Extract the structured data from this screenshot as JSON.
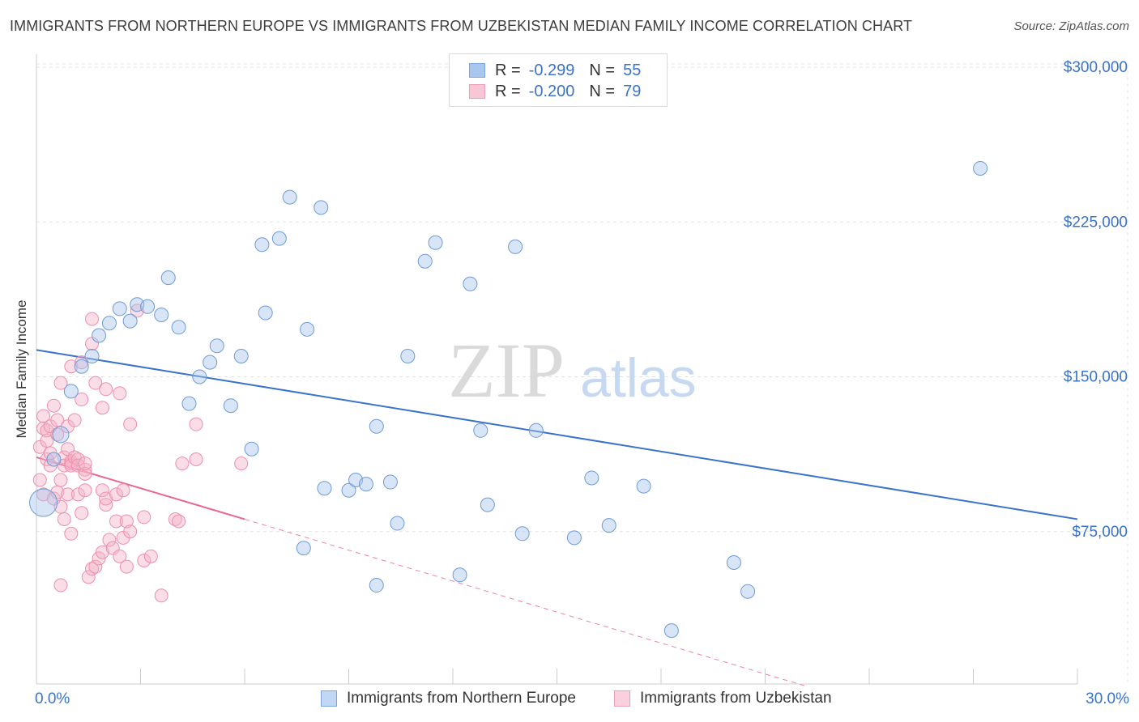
{
  "title": "IMMIGRANTS FROM NORTHERN EUROPE VS IMMIGRANTS FROM UZBEKISTAN MEDIAN FAMILY INCOME CORRELATION CHART",
  "source": "Source: ZipAtlas.com",
  "watermark": {
    "zip": "ZIP",
    "atlas": "atlas"
  },
  "legend": {
    "blue": {
      "r_label": "R =",
      "r_value": "-0.299",
      "n_label": "N =",
      "n_value": "55"
    },
    "pink": {
      "r_label": "R =",
      "r_value": "-0.200",
      "n_label": "N =",
      "n_value": "79"
    }
  },
  "colors": {
    "blue": "#3a73c9",
    "blue_fill": "#a9c6ee",
    "pink": "#e8668f",
    "pink_fill": "#f5b3c8",
    "grid": "#e3e3e3",
    "tick_label": "#3a73c9"
  },
  "chart_data": {
    "type": "scatter",
    "title": "IMMIGRANTS FROM NORTHERN EUROPE VS IMMIGRANTS FROM UZBEKISTAN MEDIAN FAMILY INCOME CORRELATION CHART",
    "xlabel": "",
    "ylabel": "Median Family Income",
    "xlim": [
      0,
      30
    ],
    "ylim": [
      0,
      310000
    ],
    "x_tick_labels": [
      "0.0%",
      "30.0%"
    ],
    "y_ticks": [
      75000,
      150000,
      225000,
      300000
    ],
    "y_tick_labels": [
      "$75,000",
      "$150,000",
      "$225,000",
      "$300,000"
    ],
    "grid": true,
    "legend_position": "top-center",
    "series": [
      {
        "name": "Immigrants from Northern Europe",
        "color": "#3a73c9",
        "r": -0.299,
        "n": 55,
        "trend": {
          "x": [
            0,
            30
          ],
          "y": [
            163000,
            81000
          ]
        },
        "points": [
          [
            0.2,
            89000
          ],
          [
            0.5,
            110000
          ],
          [
            0.7,
            122000
          ],
          [
            1.0,
            143000
          ],
          [
            1.3,
            155000
          ],
          [
            1.6,
            160000
          ],
          [
            1.8,
            170000
          ],
          [
            2.1,
            176000
          ],
          [
            2.4,
            183000
          ],
          [
            2.7,
            177000
          ],
          [
            2.9,
            185000
          ],
          [
            3.2,
            184000
          ],
          [
            3.6,
            180000
          ],
          [
            3.8,
            198000
          ],
          [
            4.1,
            174000
          ],
          [
            4.4,
            137000
          ],
          [
            4.7,
            150000
          ],
          [
            5.0,
            157000
          ],
          [
            5.2,
            165000
          ],
          [
            5.6,
            136000
          ],
          [
            5.9,
            160000
          ],
          [
            6.2,
            115000
          ],
          [
            6.5,
            214000
          ],
          [
            6.6,
            181000
          ],
          [
            7.0,
            217000
          ],
          [
            7.3,
            237000
          ],
          [
            7.7,
            67000
          ],
          [
            7.8,
            173000
          ],
          [
            8.2,
            232000
          ],
          [
            8.3,
            96000
          ],
          [
            9.0,
            95000
          ],
          [
            9.2,
            100000
          ],
          [
            9.5,
            98000
          ],
          [
            9.8,
            49000
          ],
          [
            9.8,
            126000
          ],
          [
            10.2,
            99000
          ],
          [
            10.4,
            79000
          ],
          [
            10.7,
            160000
          ],
          [
            11.2,
            206000
          ],
          [
            11.5,
            215000
          ],
          [
            12.2,
            54000
          ],
          [
            12.5,
            195000
          ],
          [
            12.8,
            124000
          ],
          [
            13.0,
            88000
          ],
          [
            13.8,
            213000
          ],
          [
            14.0,
            74000
          ],
          [
            14.4,
            124000
          ],
          [
            15.5,
            72000
          ],
          [
            16.0,
            101000
          ],
          [
            16.5,
            78000
          ],
          [
            17.5,
            97000
          ],
          [
            18.3,
            27000
          ],
          [
            20.1,
            60000
          ],
          [
            20.5,
            46000
          ],
          [
            27.2,
            251000
          ]
        ]
      },
      {
        "name": "Immigrants from Uzbekistan",
        "color": "#e8668f",
        "r": -0.2,
        "n": 79,
        "trend": {
          "x": [
            0,
            6
          ],
          "y": [
            111000,
            81000
          ]
        },
        "trend_extension": {
          "x": [
            6,
            30
          ],
          "y": [
            81000,
            -39000
          ]
        },
        "points": [
          [
            0.1,
            100000
          ],
          [
            0.1,
            116000
          ],
          [
            0.2,
            125000
          ],
          [
            0.2,
            131000
          ],
          [
            0.2,
            93000
          ],
          [
            0.3,
            110000
          ],
          [
            0.3,
            119000
          ],
          [
            0.3,
            124000
          ],
          [
            0.4,
            113000
          ],
          [
            0.4,
            107000
          ],
          [
            0.4,
            126000
          ],
          [
            0.5,
            136000
          ],
          [
            0.5,
            91000
          ],
          [
            0.6,
            94000
          ],
          [
            0.6,
            122000
          ],
          [
            0.6,
            129000
          ],
          [
            0.7,
            87000
          ],
          [
            0.7,
            100000
          ],
          [
            0.7,
            147000
          ],
          [
            0.7,
            49000
          ],
          [
            0.8,
            111000
          ],
          [
            0.8,
            107000
          ],
          [
            0.8,
            81000
          ],
          [
            0.9,
            93000
          ],
          [
            0.9,
            115000
          ],
          [
            0.9,
            126000
          ],
          [
            1.0,
            108000
          ],
          [
            1.0,
            109000
          ],
          [
            1.0,
            107000
          ],
          [
            1.0,
            155000
          ],
          [
            1.0,
            74000
          ],
          [
            1.1,
            111000
          ],
          [
            1.1,
            129000
          ],
          [
            1.2,
            110000
          ],
          [
            1.2,
            93000
          ],
          [
            1.2,
            107000
          ],
          [
            1.3,
            139000
          ],
          [
            1.3,
            84000
          ],
          [
            1.3,
            157000
          ],
          [
            1.4,
            105000
          ],
          [
            1.4,
            103000
          ],
          [
            1.4,
            95000
          ],
          [
            1.4,
            108000
          ],
          [
            1.5,
            53000
          ],
          [
            1.6,
            57000
          ],
          [
            1.6,
            166000
          ],
          [
            1.6,
            178000
          ],
          [
            1.7,
            147000
          ],
          [
            1.7,
            58000
          ],
          [
            1.8,
            62000
          ],
          [
            1.9,
            65000
          ],
          [
            1.9,
            95000
          ],
          [
            1.9,
            135000
          ],
          [
            2.0,
            144000
          ],
          [
            2.0,
            88000
          ],
          [
            2.0,
            91000
          ],
          [
            2.1,
            71000
          ],
          [
            2.2,
            67000
          ],
          [
            2.3,
            93000
          ],
          [
            2.3,
            80000
          ],
          [
            2.4,
            142000
          ],
          [
            2.4,
            63000
          ],
          [
            2.5,
            72000
          ],
          [
            2.5,
            95000
          ],
          [
            2.6,
            80000
          ],
          [
            2.6,
            58000
          ],
          [
            2.7,
            75000
          ],
          [
            2.7,
            127000
          ],
          [
            2.9,
            182000
          ],
          [
            3.1,
            61000
          ],
          [
            3.1,
            82000
          ],
          [
            3.3,
            63000
          ],
          [
            3.6,
            44000
          ],
          [
            4.0,
            81000
          ],
          [
            4.1,
            80000
          ],
          [
            4.2,
            108000
          ],
          [
            4.6,
            127000
          ],
          [
            4.6,
            110000
          ],
          [
            5.9,
            108000
          ]
        ]
      }
    ]
  },
  "bottom_legend": {
    "blue": "Immigrants from Northern Europe",
    "pink": "Immigrants from Uzbekistan"
  }
}
